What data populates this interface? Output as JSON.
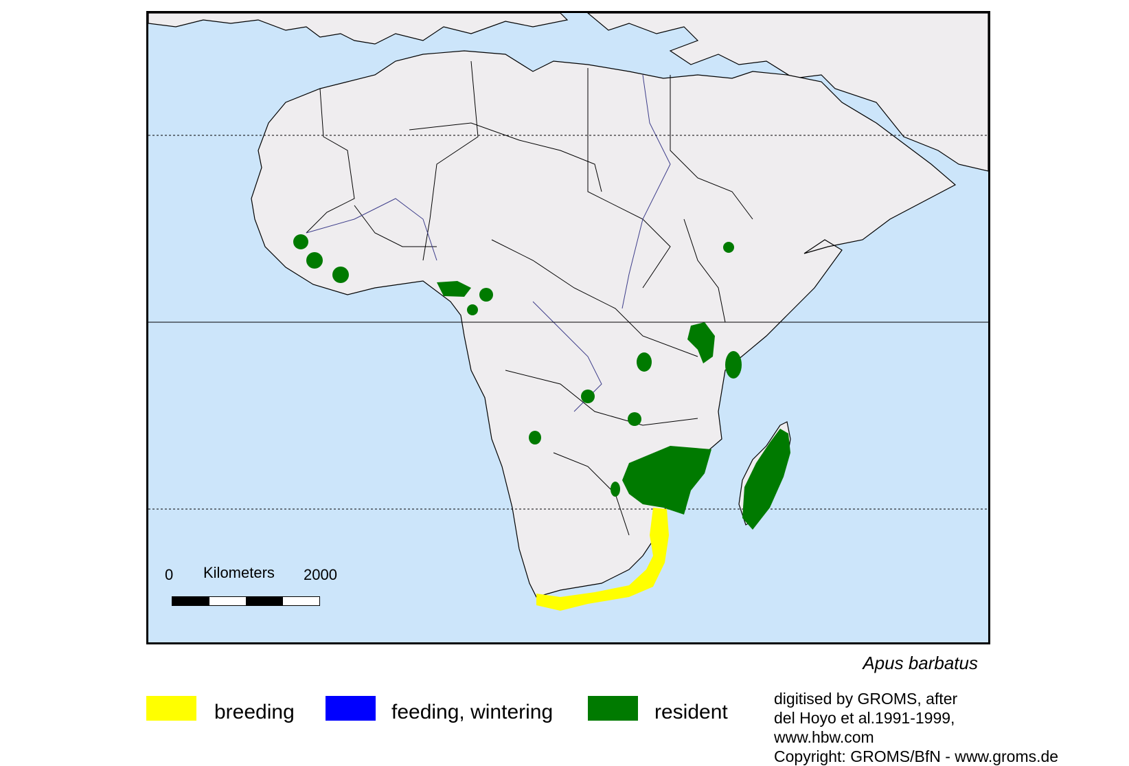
{
  "map": {
    "ocean_color": "#cce5fa",
    "land_color": "#efedef",
    "border_color": "#000000",
    "river_color": "#3d3d8a"
  },
  "scale_bar": {
    "start_label": "0",
    "unit_label": "Kilometers",
    "end_label": "2000"
  },
  "species_name": "Apus barbatus",
  "legend": [
    {
      "label": "breeding",
      "color": "#ffff00"
    },
    {
      "label": "feeding, wintering",
      "color": "#0000ff"
    },
    {
      "label": "resident",
      "color": "#007a00"
    }
  ],
  "credits": [
    "digitised by GROMS, after",
    "del Hoyo et al.1991-1999,",
    "www.hbw.com",
    "Copyright: GROMS/BfN - www.groms.de"
  ]
}
